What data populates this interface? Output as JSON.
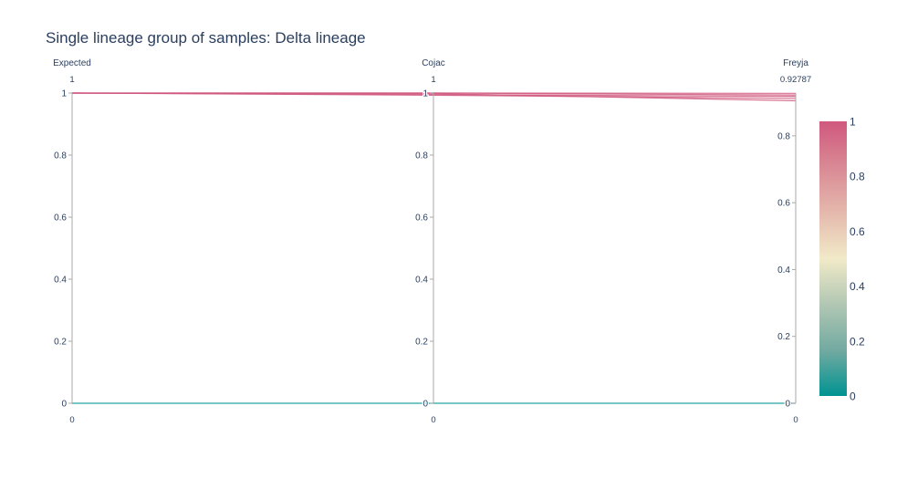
{
  "chart_data": {
    "type": "parallel_coordinates",
    "title": "Single lineage group of samples: Delta lineage",
    "dimensions": [
      {
        "label": "Expected",
        "range": [
          0,
          1
        ],
        "top_label": "1",
        "bottom_label": "0",
        "ticks": [
          "0",
          "0.2",
          "0.4",
          "0.6",
          "0.8",
          "1"
        ],
        "tick_values": [
          0,
          0.2,
          0.4,
          0.6,
          0.8,
          1
        ]
      },
      {
        "label": "Cojac",
        "range": [
          0,
          1
        ],
        "top_label": "1",
        "bottom_label": "0",
        "ticks": [
          "0",
          "0.2",
          "0.4",
          "0.6",
          "0.8",
          "1"
        ],
        "tick_values": [
          0,
          0.2,
          0.4,
          0.6,
          0.8,
          1
        ]
      },
      {
        "label": "Freyja",
        "range": [
          0,
          0.92787
        ],
        "top_label": "0.92787",
        "bottom_label": "0",
        "ticks": [
          "0",
          "0.2",
          "0.4",
          "0.6",
          "0.8"
        ],
        "tick_values": [
          0,
          0.2,
          0.4,
          0.6,
          0.8
        ]
      }
    ],
    "lines": [
      {
        "values": [
          1,
          1,
          0.927
        ],
        "color_value": 1
      },
      {
        "values": [
          1,
          1,
          0.922
        ],
        "color_value": 1
      },
      {
        "values": [
          1,
          0.995,
          0.918
        ],
        "color_value": 1
      },
      {
        "values": [
          1,
          0.993,
          0.912
        ],
        "color_value": 1
      },
      {
        "values": [
          1,
          0.998,
          0.905
        ],
        "color_value": 1
      },
      {
        "values": [
          0,
          0,
          0
        ],
        "color_value": 0
      }
    ],
    "colorbar": {
      "ticks": [
        "0",
        "0.2",
        "0.4",
        "0.6",
        "0.8",
        "1"
      ],
      "tick_values": [
        0,
        0.2,
        0.4,
        0.6,
        0.8,
        1
      ],
      "range": [
        0,
        1
      ],
      "colorscale": [
        "#009392",
        "#72aaa1",
        "#b1c7b3",
        "#f1eac8",
        "#e5b9ad",
        "#d98994",
        "#d0587e"
      ]
    }
  }
}
